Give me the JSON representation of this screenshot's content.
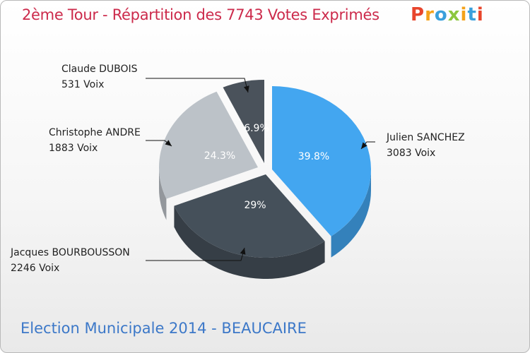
{
  "header": {
    "title": "2ème Tour - Répartition des 7743 Votes Exprimés"
  },
  "logo": {
    "letters": [
      "P",
      "r",
      "o",
      "x",
      "i",
      "t",
      "i"
    ],
    "colors": [
      "#e8452c",
      "#f4a21a",
      "#3aa0dc",
      "#8cc63f",
      "#f4a21a",
      "#3aa0dc",
      "#e8452c"
    ]
  },
  "footer": {
    "text": "Election Municipale 2014 - BEAUCAIRE"
  },
  "chart_data": {
    "type": "pie",
    "title": "2ème Tour - Répartition des 7743 Votes Exprimés",
    "slices": [
      {
        "name": "Julien SANCHEZ",
        "votes": 3083,
        "votes_label": "3083 Voix",
        "percent": 39.8,
        "percent_label": "39.8%",
        "color": "#43a6f0"
      },
      {
        "name": "Jacques BOURBOUSSON",
        "votes": 2246,
        "votes_label": "2246 Voix",
        "percent": 29.0,
        "percent_label": "29%",
        "color": "#45505a"
      },
      {
        "name": "Christophe ANDRE",
        "votes": 1883,
        "votes_label": "1883 Voix",
        "percent": 24.3,
        "percent_label": "24.3%",
        "color": "#bcc2c8"
      },
      {
        "name": "Claude DUBOIS",
        "votes": 531,
        "votes_label": "531 Voix",
        "percent": 6.9,
        "percent_label": "6.9%",
        "color": "#4a525b"
      }
    ]
  }
}
